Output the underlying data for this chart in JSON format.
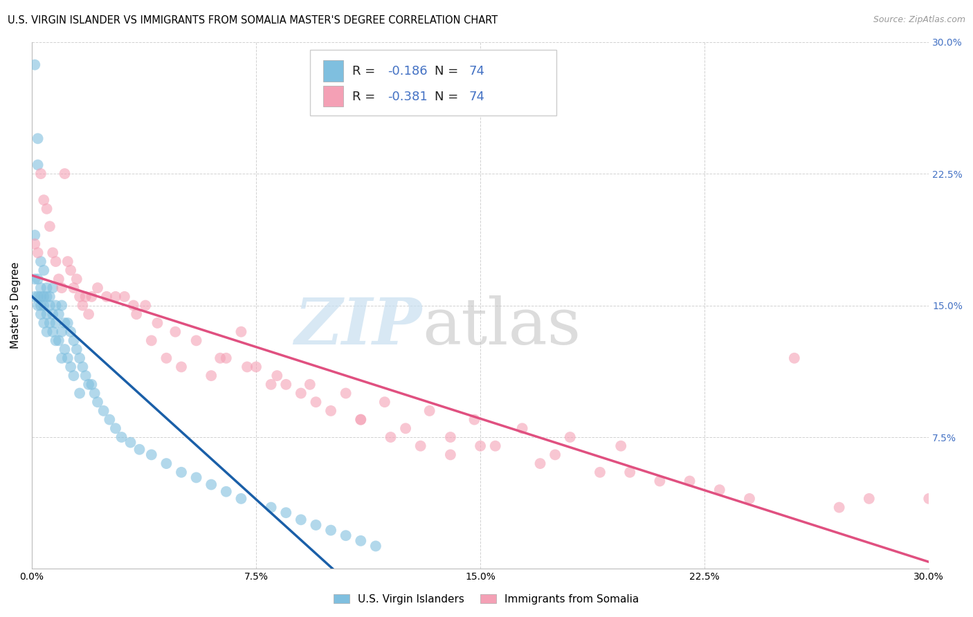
{
  "title": "U.S. VIRGIN ISLANDER VS IMMIGRANTS FROM SOMALIA MASTER'S DEGREE CORRELATION CHART",
  "source": "Source: ZipAtlas.com",
  "ylabel": "Master's Degree",
  "legend_labels": [
    "U.S. Virgin Islanders",
    "Immigrants from Somalia"
  ],
  "blue_R": -0.186,
  "pink_R": -0.381,
  "N": 74,
  "blue_color": "#7fbfdf",
  "pink_color": "#f4a0b5",
  "trend_blue_color": "#1a5fa8",
  "trend_pink_color": "#e05080",
  "xlim": [
    0.0,
    0.3
  ],
  "ylim": [
    0.0,
    0.3
  ],
  "xtick_vals": [
    0.0,
    0.075,
    0.15,
    0.225,
    0.3
  ],
  "xtick_labels": [
    "0.0%",
    "7.5%",
    "15.0%",
    "22.5%",
    "30.0%"
  ],
  "ytick_vals": [
    0.0,
    0.075,
    0.15,
    0.225,
    0.3
  ],
  "ytick_labels": [
    "",
    "7.5%",
    "15.0%",
    "22.5%",
    "30.0%"
  ],
  "grid_color": "#cccccc",
  "background_color": "#ffffff",
  "title_fontsize": 10.5,
  "label_fontsize": 11,
  "tick_fontsize": 10,
  "legend_fontsize": 13,
  "blue_x": [
    0.001,
    0.001,
    0.001,
    0.001,
    0.002,
    0.002,
    0.002,
    0.002,
    0.002,
    0.003,
    0.003,
    0.003,
    0.003,
    0.003,
    0.004,
    0.004,
    0.004,
    0.004,
    0.005,
    0.005,
    0.005,
    0.005,
    0.006,
    0.006,
    0.006,
    0.007,
    0.007,
    0.007,
    0.008,
    0.008,
    0.008,
    0.009,
    0.009,
    0.01,
    0.01,
    0.01,
    0.011,
    0.011,
    0.012,
    0.012,
    0.013,
    0.013,
    0.014,
    0.014,
    0.015,
    0.016,
    0.016,
    0.017,
    0.018,
    0.019,
    0.02,
    0.021,
    0.022,
    0.024,
    0.026,
    0.028,
    0.03,
    0.033,
    0.036,
    0.04,
    0.045,
    0.05,
    0.055,
    0.06,
    0.065,
    0.07,
    0.08,
    0.085,
    0.09,
    0.095,
    0.1,
    0.105,
    0.11,
    0.115
  ],
  "blue_y": [
    0.287,
    0.19,
    0.165,
    0.155,
    0.245,
    0.23,
    0.165,
    0.155,
    0.15,
    0.175,
    0.16,
    0.155,
    0.15,
    0.145,
    0.17,
    0.155,
    0.15,
    0.14,
    0.16,
    0.155,
    0.145,
    0.135,
    0.155,
    0.15,
    0.14,
    0.16,
    0.145,
    0.135,
    0.15,
    0.14,
    0.13,
    0.145,
    0.13,
    0.15,
    0.135,
    0.12,
    0.14,
    0.125,
    0.14,
    0.12,
    0.135,
    0.115,
    0.13,
    0.11,
    0.125,
    0.12,
    0.1,
    0.115,
    0.11,
    0.105,
    0.105,
    0.1,
    0.095,
    0.09,
    0.085,
    0.08,
    0.075,
    0.072,
    0.068,
    0.065,
    0.06,
    0.055,
    0.052,
    0.048,
    0.044,
    0.04,
    0.035,
    0.032,
    0.028,
    0.025,
    0.022,
    0.019,
    0.016,
    0.013
  ],
  "pink_x": [
    0.001,
    0.002,
    0.003,
    0.004,
    0.005,
    0.006,
    0.007,
    0.008,
    0.009,
    0.01,
    0.011,
    0.012,
    0.013,
    0.014,
    0.015,
    0.016,
    0.017,
    0.018,
    0.019,
    0.02,
    0.022,
    0.025,
    0.028,
    0.031,
    0.034,
    0.038,
    0.042,
    0.048,
    0.055,
    0.063,
    0.072,
    0.082,
    0.093,
    0.105,
    0.118,
    0.133,
    0.148,
    0.164,
    0.18,
    0.197,
    0.035,
    0.04,
    0.045,
    0.05,
    0.06,
    0.07,
    0.08,
    0.09,
    0.1,
    0.11,
    0.12,
    0.13,
    0.14,
    0.15,
    0.17,
    0.19,
    0.21,
    0.23,
    0.255,
    0.28,
    0.3,
    0.065,
    0.075,
    0.085,
    0.095,
    0.11,
    0.125,
    0.14,
    0.155,
    0.175,
    0.2,
    0.22,
    0.24,
    0.27
  ],
  "pink_y": [
    0.185,
    0.18,
    0.225,
    0.21,
    0.205,
    0.195,
    0.18,
    0.175,
    0.165,
    0.16,
    0.225,
    0.175,
    0.17,
    0.16,
    0.165,
    0.155,
    0.15,
    0.155,
    0.145,
    0.155,
    0.16,
    0.155,
    0.155,
    0.155,
    0.15,
    0.15,
    0.14,
    0.135,
    0.13,
    0.12,
    0.115,
    0.11,
    0.105,
    0.1,
    0.095,
    0.09,
    0.085,
    0.08,
    0.075,
    0.07,
    0.145,
    0.13,
    0.12,
    0.115,
    0.11,
    0.135,
    0.105,
    0.1,
    0.09,
    0.085,
    0.075,
    0.07,
    0.065,
    0.07,
    0.06,
    0.055,
    0.05,
    0.045,
    0.12,
    0.04,
    0.04,
    0.12,
    0.115,
    0.105,
    0.095,
    0.085,
    0.08,
    0.075,
    0.07,
    0.065,
    0.055,
    0.05,
    0.04,
    0.035
  ]
}
